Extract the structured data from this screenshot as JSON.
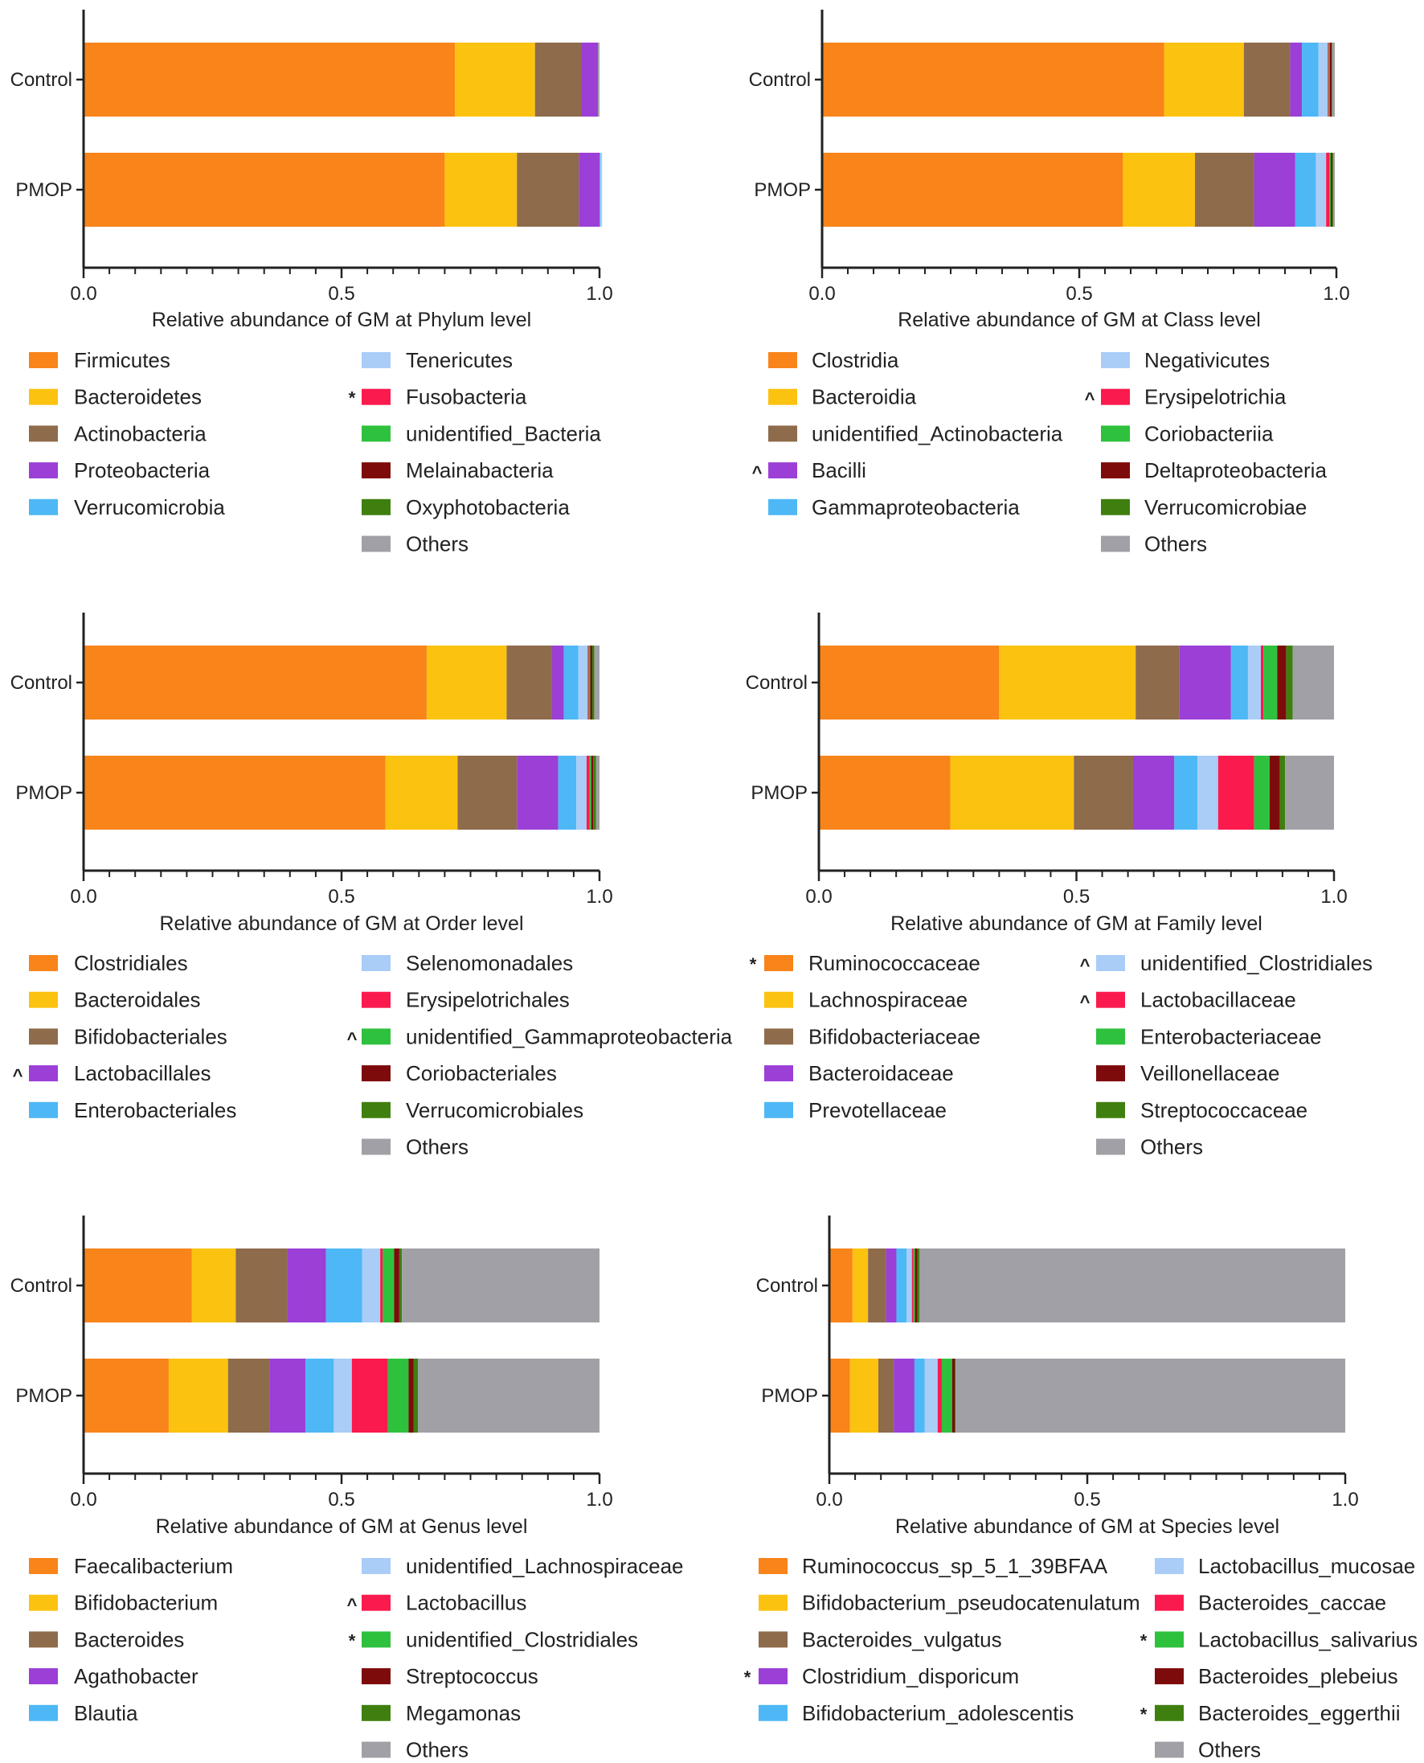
{
  "chart_data": [
    {
      "type": "bar",
      "orientation": "horizontal",
      "stacked": true,
      "xlabel": "Relative abundance of GM at Phylum level",
      "xlim": [
        0,
        1.0
      ],
      "ticks": [
        "0.0",
        "0.5",
        "1.0"
      ],
      "categories": [
        "Control",
        "PMOP"
      ],
      "legend": [
        {
          "name": "Firmicutes",
          "color": "#F8841A",
          "mark": ""
        },
        {
          "name": "Bacteroidetes",
          "color": "#FCC210",
          "mark": ""
        },
        {
          "name": "Actinobacteria",
          "color": "#8E6B4B",
          "mark": ""
        },
        {
          "name": "Proteobacteria",
          "color": "#9B3FD6",
          "mark": ""
        },
        {
          "name": "Verrucomicrobia",
          "color": "#4DB8F5",
          "mark": ""
        },
        {
          "name": "Tenericutes",
          "color": "#A9CDF7",
          "mark": ""
        },
        {
          "name": "Fusobacteria",
          "color": "#FB1A4E",
          "mark": "*"
        },
        {
          "name": "unidentified_Bacteria",
          "color": "#2EC13D",
          "mark": ""
        },
        {
          "name": "Melainabacteria",
          "color": "#7E0B0B",
          "mark": ""
        },
        {
          "name": "Oxyphotobacteria",
          "color": "#3F7F10",
          "mark": ""
        },
        {
          "name": "Others",
          "color": "#A0A0A6",
          "mark": ""
        }
      ],
      "series": [
        {
          "name": "Firmicutes",
          "values": [
            0.72,
            0.7
          ]
        },
        {
          "name": "Bacteroidetes",
          "values": [
            0.155,
            0.14
          ]
        },
        {
          "name": "Actinobacteria",
          "values": [
            0.09,
            0.12
          ]
        },
        {
          "name": "Proteobacteria",
          "values": [
            0.032,
            0.04
          ]
        },
        {
          "name": "Verrucomicrobia",
          "values": [
            0.0,
            0.002
          ]
        },
        {
          "name": "Tenericutes",
          "values": [
            0.0,
            0.003
          ]
        },
        {
          "name": "Fusobacteria",
          "values": [
            0.0,
            0.0
          ]
        },
        {
          "name": "unidentified_Bacteria",
          "values": [
            0.0,
            0.0
          ]
        },
        {
          "name": "Melainabacteria",
          "values": [
            0.0,
            0.0
          ]
        },
        {
          "name": "Oxyphotobacteria",
          "values": [
            0.0,
            0.0
          ]
        },
        {
          "name": "Others",
          "values": [
            0.003,
            0.0
          ]
        }
      ]
    },
    {
      "type": "bar",
      "orientation": "horizontal",
      "stacked": true,
      "xlabel": "Relative abundance of GM at Class level",
      "xlim": [
        0,
        1.0
      ],
      "ticks": [
        "0.0",
        "0.5",
        "1.0"
      ],
      "categories": [
        "Control",
        "PMOP"
      ],
      "legend": [
        {
          "name": "Clostridia",
          "color": "#F8841A",
          "mark": ""
        },
        {
          "name": "Bacteroidia",
          "color": "#FCC210",
          "mark": ""
        },
        {
          "name": "unidentified_Actinobacteria",
          "color": "#8E6B4B",
          "mark": ""
        },
        {
          "name": "Bacilli",
          "color": "#9B3FD6",
          "mark": "^"
        },
        {
          "name": "Gammaproteobacteria",
          "color": "#4DB8F5",
          "mark": ""
        },
        {
          "name": "Negativicutes",
          "color": "#A9CDF7",
          "mark": ""
        },
        {
          "name": "Erysipelotrichia",
          "color": "#FB1A4E",
          "mark": "^"
        },
        {
          "name": "Coriobacteriia",
          "color": "#2EC13D",
          "mark": ""
        },
        {
          "name": "Deltaproteobacteria",
          "color": "#7E0B0B",
          "mark": ""
        },
        {
          "name": "Verrucomicrobiae",
          "color": "#3F7F10",
          "mark": ""
        },
        {
          "name": "Others",
          "color": "#A0A0A6",
          "mark": ""
        }
      ],
      "series": [
        {
          "name": "Clostridia",
          "values": [
            0.665,
            0.585
          ]
        },
        {
          "name": "Bacteroidia",
          "values": [
            0.155,
            0.14
          ]
        },
        {
          "name": "unidentified_Actinobacteria",
          "values": [
            0.09,
            0.115
          ]
        },
        {
          "name": "Bacilli",
          "values": [
            0.023,
            0.08
          ]
        },
        {
          "name": "Gammaproteobacteria",
          "values": [
            0.032,
            0.04
          ]
        },
        {
          "name": "Negativicutes",
          "values": [
            0.018,
            0.02
          ]
        },
        {
          "name": "Erysipelotrichia",
          "values": [
            0.002,
            0.006
          ]
        },
        {
          "name": "Coriobacteriia",
          "values": [
            0.002,
            0.003
          ]
        },
        {
          "name": "Deltaproteobacteria",
          "values": [
            0.004,
            0.003
          ]
        },
        {
          "name": "Verrucomicrobiae",
          "values": [
            0.001,
            0.002
          ]
        },
        {
          "name": "Others",
          "values": [
            0.005,
            0.003
          ]
        }
      ]
    },
    {
      "type": "bar",
      "orientation": "horizontal",
      "stacked": true,
      "xlabel": "Relative abundance of GM at Order level",
      "xlim": [
        0,
        1.0
      ],
      "ticks": [
        "0.0",
        "0.5",
        "1.0"
      ],
      "categories": [
        "Control",
        "PMOP"
      ],
      "legend": [
        {
          "name": "Clostridiales",
          "color": "#F8841A",
          "mark": ""
        },
        {
          "name": "Bacteroidales",
          "color": "#FCC210",
          "mark": ""
        },
        {
          "name": "Bifidobacteriales",
          "color": "#8E6B4B",
          "mark": ""
        },
        {
          "name": "Lactobacillales",
          "color": "#9B3FD6",
          "mark": "^"
        },
        {
          "name": "Enterobacteriales",
          "color": "#4DB8F5",
          "mark": ""
        },
        {
          "name": "Selenomonadales",
          "color": "#A9CDF7",
          "mark": ""
        },
        {
          "name": "Erysipelotrichales",
          "color": "#FB1A4E",
          "mark": ""
        },
        {
          "name": "unidentified_Gammaproteobacteria",
          "color": "#2EC13D",
          "mark": "^"
        },
        {
          "name": "Coriobacteriales",
          "color": "#7E0B0B",
          "mark": ""
        },
        {
          "name": "Verrucomicrobiales",
          "color": "#3F7F10",
          "mark": ""
        },
        {
          "name": "Others",
          "color": "#A0A0A6",
          "mark": ""
        }
      ],
      "series": [
        {
          "name": "Clostridiales",
          "values": [
            0.665,
            0.585
          ]
        },
        {
          "name": "Bacteroidales",
          "values": [
            0.155,
            0.14
          ]
        },
        {
          "name": "Bifidobacteriales",
          "values": [
            0.088,
            0.115
          ]
        },
        {
          "name": "Lactobacillales",
          "values": [
            0.023,
            0.08
          ]
        },
        {
          "name": "Enterobacteriales",
          "values": [
            0.028,
            0.035
          ]
        },
        {
          "name": "Selenomonadales",
          "values": [
            0.018,
            0.02
          ]
        },
        {
          "name": "Erysipelotrichales",
          "values": [
            0.002,
            0.006
          ]
        },
        {
          "name": "unidentified_Gammaproteobacteria",
          "values": [
            0.003,
            0.003
          ]
        },
        {
          "name": "Coriobacteriales",
          "values": [
            0.004,
            0.004
          ]
        },
        {
          "name": "Verrucomicrobiales",
          "values": [
            0.004,
            0.005
          ]
        },
        {
          "name": "Others",
          "values": [
            0.01,
            0.007
          ]
        }
      ]
    },
    {
      "type": "bar",
      "orientation": "horizontal",
      "stacked": true,
      "xlabel": "Relative abundance of GM at Family level",
      "xlim": [
        0,
        1.0
      ],
      "ticks": [
        "0.0",
        "0.5",
        "1.0"
      ],
      "categories": [
        "Control",
        "PMOP"
      ],
      "legend": [
        {
          "name": "Ruminococcaceae",
          "color": "#F8841A",
          "mark": "*"
        },
        {
          "name": "Lachnospiraceae",
          "color": "#FCC210",
          "mark": ""
        },
        {
          "name": "Bifidobacteriaceae",
          "color": "#8E6B4B",
          "mark": ""
        },
        {
          "name": "Bacteroidaceae",
          "color": "#9B3FD6",
          "mark": ""
        },
        {
          "name": "Prevotellaceae",
          "color": "#4DB8F5",
          "mark": ""
        },
        {
          "name": "unidentified_Clostridiales",
          "color": "#A9CDF7",
          "mark": "^"
        },
        {
          "name": "Lactobacillaceae",
          "color": "#FB1A4E",
          "mark": "^"
        },
        {
          "name": "Enterobacteriaceae",
          "color": "#2EC13D",
          "mark": ""
        },
        {
          "name": "Veillonellaceae",
          "color": "#7E0B0B",
          "mark": ""
        },
        {
          "name": "Streptococcaceae",
          "color": "#3F7F10",
          "mark": ""
        },
        {
          "name": "Others",
          "color": "#A0A0A6",
          "mark": ""
        }
      ],
      "series": [
        {
          "name": "Ruminococcaceae",
          "values": [
            0.35,
            0.255
          ]
        },
        {
          "name": "Lachnospiraceae",
          "values": [
            0.265,
            0.24
          ]
        },
        {
          "name": "Bifidobacteriaceae",
          "values": [
            0.085,
            0.115
          ]
        },
        {
          "name": "Bacteroidaceae",
          "values": [
            0.1,
            0.08
          ]
        },
        {
          "name": "Prevotellaceae",
          "values": [
            0.033,
            0.045
          ]
        },
        {
          "name": "unidentified_Clostridiales",
          "values": [
            0.025,
            0.04
          ]
        },
        {
          "name": "Lactobacillaceae",
          "values": [
            0.005,
            0.07
          ]
        },
        {
          "name": "Enterobacteriaceae",
          "values": [
            0.027,
            0.03
          ]
        },
        {
          "name": "Veillonellaceae",
          "values": [
            0.017,
            0.02
          ]
        },
        {
          "name": "Streptococcaceae",
          "values": [
            0.013,
            0.01
          ]
        },
        {
          "name": "Others",
          "values": [
            0.08,
            0.095
          ]
        }
      ]
    },
    {
      "type": "bar",
      "orientation": "horizontal",
      "stacked": true,
      "xlabel": "Relative abundance of GM at Genus level",
      "xlim": [
        0,
        1.0
      ],
      "ticks": [
        "0.0",
        "0.5",
        "1.0"
      ],
      "categories": [
        "Control",
        "PMOP"
      ],
      "legend": [
        {
          "name": "Faecalibacterium",
          "color": "#F8841A",
          "mark": ""
        },
        {
          "name": "Bifidobacterium",
          "color": "#FCC210",
          "mark": ""
        },
        {
          "name": "Bacteroides",
          "color": "#8E6B4B",
          "mark": ""
        },
        {
          "name": "Agathobacter",
          "color": "#9B3FD6",
          "mark": ""
        },
        {
          "name": "Blautia",
          "color": "#4DB8F5",
          "mark": ""
        },
        {
          "name": "unidentified_Lachnospiraceae",
          "color": "#A9CDF7",
          "mark": ""
        },
        {
          "name": "Lactobacillus",
          "color": "#FB1A4E",
          "mark": "^"
        },
        {
          "name": "unidentified_Clostridiales",
          "color": "#2EC13D",
          "mark": "*"
        },
        {
          "name": "Streptococcus",
          "color": "#7E0B0B",
          "mark": ""
        },
        {
          "name": "Megamonas",
          "color": "#3F7F10",
          "mark": ""
        },
        {
          "name": "Others",
          "color": "#A0A0A6",
          "mark": ""
        }
      ],
      "series": [
        {
          "name": "Faecalibacterium",
          "values": [
            0.21,
            0.165
          ]
        },
        {
          "name": "Bifidobacterium",
          "values": [
            0.085,
            0.115
          ]
        },
        {
          "name": "Bacteroides",
          "values": [
            0.1,
            0.08
          ]
        },
        {
          "name": "Agathobacter",
          "values": [
            0.075,
            0.07
          ]
        },
        {
          "name": "Blautia",
          "values": [
            0.07,
            0.055
          ]
        },
        {
          "name": "unidentified_Lachnospiraceae",
          "values": [
            0.035,
            0.035
          ]
        },
        {
          "name": "Lactobacillus",
          "values": [
            0.005,
            0.07
          ]
        },
        {
          "name": "unidentified_Clostridiales",
          "values": [
            0.022,
            0.04
          ]
        },
        {
          "name": "Streptococcus",
          "values": [
            0.01,
            0.01
          ]
        },
        {
          "name": "Megamonas",
          "values": [
            0.005,
            0.008
          ]
        },
        {
          "name": "Others",
          "values": [
            0.383,
            0.352
          ]
        }
      ]
    },
    {
      "type": "bar",
      "orientation": "horizontal",
      "stacked": true,
      "xlabel": "Relative abundance of GM at Species level",
      "xlim": [
        0,
        1.0
      ],
      "ticks": [
        "0.0",
        "0.5",
        "1.0"
      ],
      "categories": [
        "Control",
        "PMOP"
      ],
      "legend": [
        {
          "name": "Ruminococcus_sp_5_1_39BFAA",
          "color": "#F8841A",
          "mark": ""
        },
        {
          "name": "Bifidobacterium_pseudocatenulatum",
          "color": "#FCC210",
          "mark": ""
        },
        {
          "name": "Bacteroides_vulgatus",
          "color": "#8E6B4B",
          "mark": ""
        },
        {
          "name": "Clostridium_disporicum",
          "color": "#9B3FD6",
          "mark": "*"
        },
        {
          "name": "Bifidobacterium_adolescentis",
          "color": "#4DB8F5",
          "mark": ""
        },
        {
          "name": "Lactobacillus_mucosae",
          "color": "#A9CDF7",
          "mark": ""
        },
        {
          "name": "Bacteroides_caccae",
          "color": "#FB1A4E",
          "mark": ""
        },
        {
          "name": "Lactobacillus_salivarius",
          "color": "#2EC13D",
          "mark": "*"
        },
        {
          "name": "Bacteroides_plebeius",
          "color": "#7E0B0B",
          "mark": ""
        },
        {
          "name": "Bacteroides_eggerthii",
          "color": "#3F7F10",
          "mark": "*"
        },
        {
          "name": "Others",
          "color": "#A0A0A6",
          "mark": ""
        }
      ],
      "series": [
        {
          "name": "Ruminococcus_sp_5_1_39BFAA",
          "values": [
            0.045,
            0.04
          ]
        },
        {
          "name": "Bifidobacterium_pseudocatenulatum",
          "values": [
            0.03,
            0.055
          ]
        },
        {
          "name": "Bacteroides_vulgatus",
          "values": [
            0.035,
            0.03
          ]
        },
        {
          "name": "Clostridium_disporicum",
          "values": [
            0.02,
            0.04
          ]
        },
        {
          "name": "Bifidobacterium_adolescentis",
          "values": [
            0.02,
            0.02
          ]
        },
        {
          "name": "Lactobacillus_mucosae",
          "values": [
            0.01,
            0.025
          ]
        },
        {
          "name": "Bacteroides_caccae",
          "values": [
            0.003,
            0.008
          ]
        },
        {
          "name": "Lactobacillus_salivarius",
          "values": [
            0.003,
            0.02
          ]
        },
        {
          "name": "Bacteroides_plebeius",
          "values": [
            0.005,
            0.005
          ]
        },
        {
          "name": "Bacteroides_eggerthii",
          "values": [
            0.004,
            0.002
          ]
        },
        {
          "name": "Others",
          "values": [
            0.825,
            0.755
          ]
        }
      ]
    }
  ]
}
